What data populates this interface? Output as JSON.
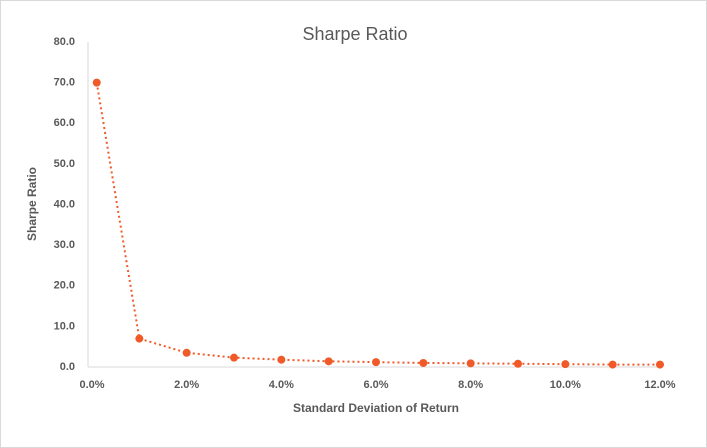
{
  "chart_data": {
    "type": "scatter",
    "title": "Sharpe Ratio",
    "x_label": "Standard Deviation of Return",
    "y_label": "Sharpe Ratio",
    "x": [
      0.1,
      1,
      2,
      3,
      4,
      5,
      6,
      7,
      8,
      9,
      10,
      11,
      12
    ],
    "series": [
      {
        "name": "Sharpe Ratio",
        "color": "#f05a28",
        "values": [
          70,
          7.0,
          3.5,
          2.3,
          1.8,
          1.4,
          1.2,
          1.0,
          0.9,
          0.8,
          0.7,
          0.6,
          0.6
        ]
      }
    ],
    "xlim": [
      0,
      12
    ],
    "xticks": [
      {
        "value": 0,
        "label": "0.0%"
      },
      {
        "value": 2,
        "label": "2.0%"
      },
      {
        "value": 4,
        "label": "4.0%"
      },
      {
        "value": 6,
        "label": "6.0%"
      },
      {
        "value": 8,
        "label": "8.0%"
      },
      {
        "value": 10,
        "label": "10.0%"
      },
      {
        "value": 12,
        "label": "12.0%"
      }
    ],
    "ylim": [
      0,
      80
    ],
    "yticks": [
      {
        "value": 0,
        "label": "0.0"
      },
      {
        "value": 10,
        "label": "10.0"
      },
      {
        "value": 20,
        "label": "20.0"
      },
      {
        "value": 30,
        "label": "30.0"
      },
      {
        "value": 40,
        "label": "40.0"
      },
      {
        "value": 50,
        "label": "50.0"
      },
      {
        "value": 60,
        "label": "60.0"
      },
      {
        "value": 70,
        "label": "70.0"
      },
      {
        "value": 80,
        "label": "80.0"
      }
    ],
    "grid": false
  }
}
